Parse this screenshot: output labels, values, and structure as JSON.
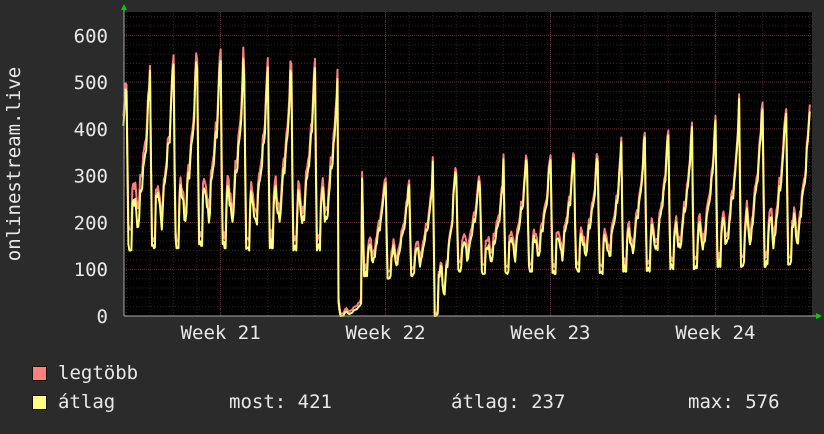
{
  "chart_data": {
    "type": "line",
    "ylabel": "onlinestream.live",
    "ylim": [
      0,
      650
    ],
    "yticks": [
      0,
      100,
      200,
      300,
      400,
      500,
      600
    ],
    "xticks": [
      {
        "label": "Week 21",
        "day": 7
      },
      {
        "label": "Week 22",
        "day": 14
      },
      {
        "label": "Week 23",
        "day": 21
      },
      {
        "label": "Week 24",
        "day": 28
      }
    ],
    "x_domain_days": [
      2.9,
      32.1
    ],
    "grid": true,
    "days": [
      3,
      4,
      5,
      6,
      7,
      8,
      9,
      10,
      11,
      12,
      13,
      14,
      15,
      16,
      17,
      18,
      19,
      20,
      21,
      22,
      23,
      24,
      25,
      26,
      27,
      28,
      29,
      30,
      31,
      32
    ],
    "series": [
      {
        "name": "legtöbb",
        "color": "#ff7f7f",
        "daily_peaks": [
          530,
          570,
          595,
          590,
          595,
          550,
          570,
          555,
          570,
          40,
          320,
          300,
          300,
          365,
          320,
          305,
          365,
          355,
          370,
          360,
          365,
          395,
          410,
          410,
          420,
          445,
          480,
          475,
          460,
          470
        ],
        "daily_lows": [
          185,
          160,
          160,
          170,
          165,
          160,
          165,
          160,
          160,
          5,
          100,
          95,
          100,
          5,
          115,
          110,
          105,
          110,
          105,
          110,
          105,
          110,
          110,
          115,
          120,
          120,
          125,
          125,
          125,
          130
        ]
      },
      {
        "name": "átlag",
        "color": "#ffff80",
        "daily_peaks": [
          520,
          560,
          575,
          570,
          570,
          530,
          550,
          535,
          550,
          30,
          305,
          290,
          290,
          355,
          310,
          295,
          355,
          345,
          360,
          350,
          355,
          385,
          400,
          400,
          410,
          435,
          470,
          460,
          450,
          455
        ],
        "daily_lows": [
          140,
          145,
          145,
          150,
          145,
          140,
          145,
          140,
          140,
          0,
          85,
          80,
          85,
          0,
          95,
          90,
          90,
          95,
          90,
          95,
          90,
          95,
          95,
          100,
          100,
          105,
          105,
          105,
          110,
          115
        ]
      }
    ]
  },
  "legend": [
    {
      "label": "legtöbb",
      "color": "#ff7f7f"
    },
    {
      "label": "átlag",
      "color": "#ffff80"
    }
  ],
  "stats": {
    "most": "most: 421",
    "atlag": "átlag: 237",
    "max": "max: 576"
  }
}
